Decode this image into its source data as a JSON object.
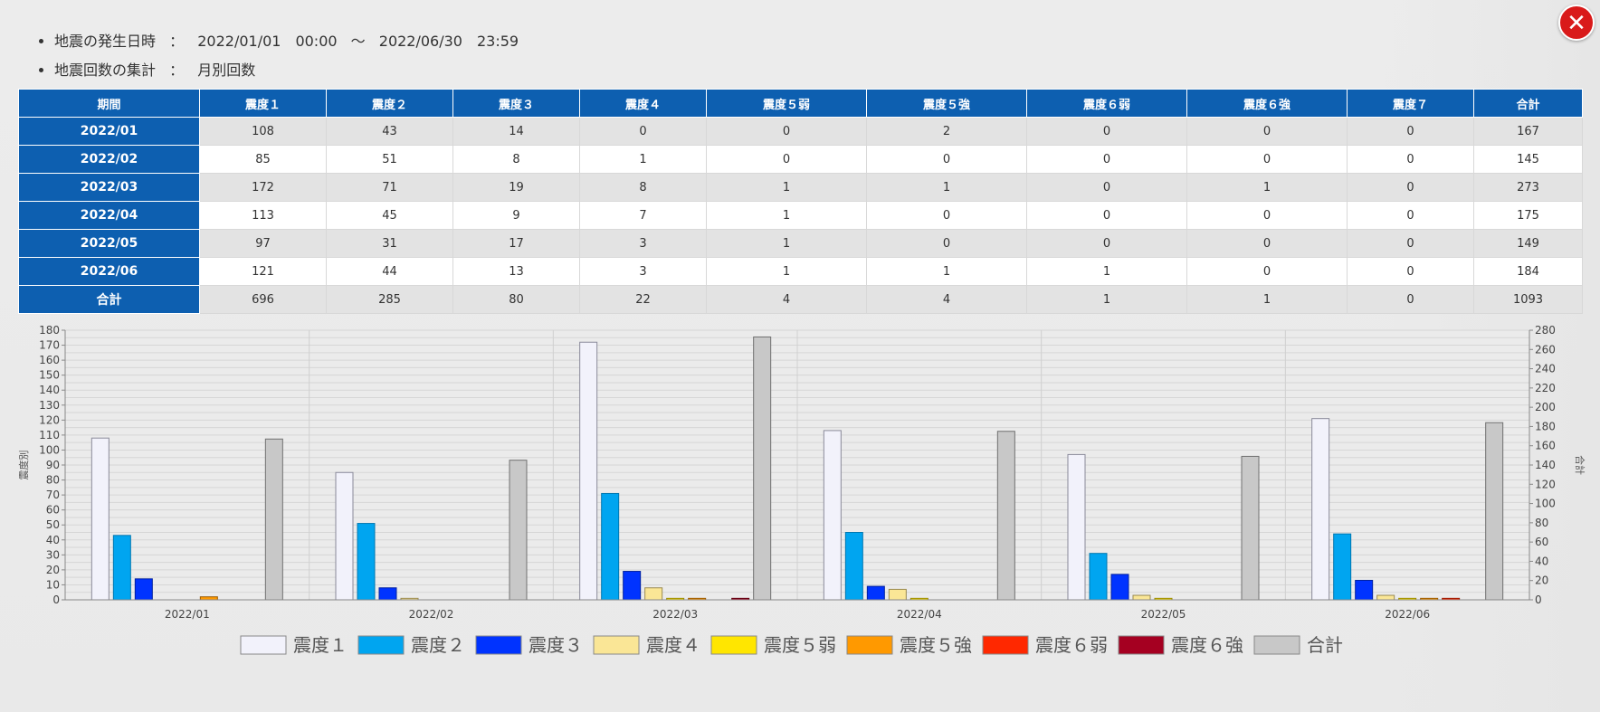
{
  "info": {
    "period_label": "地震の発生日時",
    "period_start": "2022/01/01　00:00",
    "period_tilde": "～",
    "period_end": "2022/06/30　23:59",
    "aggregate_label": "地震回数の集計",
    "aggregate_value": "月別回数",
    "colon": "："
  },
  "table": {
    "headers": [
      "期間",
      "震度１",
      "震度２",
      "震度３",
      "震度４",
      "震度５弱",
      "震度５強",
      "震度６弱",
      "震度６強",
      "震度７",
      "合計"
    ],
    "rows": [
      {
        "period": "2022/01",
        "values": [
          "108",
          "43",
          "14",
          "0",
          "0",
          "2",
          "0",
          "0",
          "0",
          "167"
        ]
      },
      {
        "period": "2022/02",
        "values": [
          "85",
          "51",
          "8",
          "1",
          "0",
          "0",
          "0",
          "0",
          "0",
          "145"
        ]
      },
      {
        "period": "2022/03",
        "values": [
          "172",
          "71",
          "19",
          "8",
          "1",
          "1",
          "0",
          "1",
          "0",
          "273"
        ]
      },
      {
        "period": "2022/04",
        "values": [
          "113",
          "45",
          "9",
          "7",
          "1",
          "0",
          "0",
          "0",
          "0",
          "175"
        ]
      },
      {
        "period": "2022/05",
        "values": [
          "97",
          "31",
          "17",
          "3",
          "1",
          "0",
          "0",
          "0",
          "0",
          "149"
        ]
      },
      {
        "period": "2022/06",
        "values": [
          "121",
          "44",
          "13",
          "3",
          "1",
          "1",
          "1",
          "0",
          "0",
          "184"
        ]
      }
    ],
    "total": {
      "period": "合計",
      "values": [
        "696",
        "285",
        "80",
        "22",
        "4",
        "4",
        "1",
        "1",
        "0",
        "1093"
      ]
    }
  },
  "chart_data": {
    "type": "bar",
    "categories": [
      "2022/01",
      "2022/02",
      "2022/03",
      "2022/04",
      "2022/05",
      "2022/06"
    ],
    "ylabel": "震度別",
    "y2label": "合計",
    "ylim": [
      0,
      180
    ],
    "y2lim": [
      0,
      280
    ],
    "yticks": [
      "0",
      "10",
      "20",
      "30",
      "40",
      "50",
      "60",
      "70",
      "80",
      "90",
      "100",
      "110",
      "120",
      "130",
      "140",
      "150",
      "160",
      "170",
      "180"
    ],
    "y2ticks": [
      "0",
      "20",
      "40",
      "60",
      "80",
      "100",
      "120",
      "140",
      "160",
      "180",
      "200",
      "220",
      "240",
      "260",
      "280"
    ],
    "grid": true,
    "legend_position": "bottom",
    "series": [
      {
        "name": "震度１",
        "axis": "left",
        "color": "#f2f2fb",
        "stroke": "#8a8a9a",
        "values": [
          108,
          85,
          172,
          113,
          97,
          121
        ]
      },
      {
        "name": "震度２",
        "axis": "left",
        "color": "#00a5f0",
        "stroke": "#0077b0",
        "values": [
          43,
          51,
          71,
          45,
          31,
          44
        ]
      },
      {
        "name": "震度３",
        "axis": "left",
        "color": "#0033ff",
        "stroke": "#0020a0",
        "values": [
          14,
          8,
          19,
          9,
          17,
          13
        ]
      },
      {
        "name": "震度４",
        "axis": "left",
        "color": "#fae696",
        "stroke": "#9a8a50",
        "values": [
          0,
          1,
          8,
          7,
          3,
          3
        ]
      },
      {
        "name": "震度５弱",
        "axis": "left",
        "color": "#ffe600",
        "stroke": "#9a8a00",
        "values": [
          0,
          0,
          1,
          1,
          1,
          1
        ]
      },
      {
        "name": "震度５強",
        "axis": "left",
        "color": "#ff9900",
        "stroke": "#9a5a00",
        "values": [
          2,
          0,
          1,
          0,
          0,
          1
        ]
      },
      {
        "name": "震度６弱",
        "axis": "left",
        "color": "#ff2800",
        "stroke": "#9a1800",
        "values": [
          0,
          0,
          0,
          0,
          0,
          1
        ]
      },
      {
        "name": "震度６強",
        "axis": "left",
        "color": "#a50021",
        "stroke": "#600010",
        "values": [
          0,
          0,
          1,
          0,
          0,
          0
        ]
      },
      {
        "name": "合計",
        "axis": "right",
        "color": "#c8c8c8",
        "stroke": "#707070",
        "values": [
          167,
          145,
          273,
          175,
          149,
          184
        ]
      }
    ]
  }
}
